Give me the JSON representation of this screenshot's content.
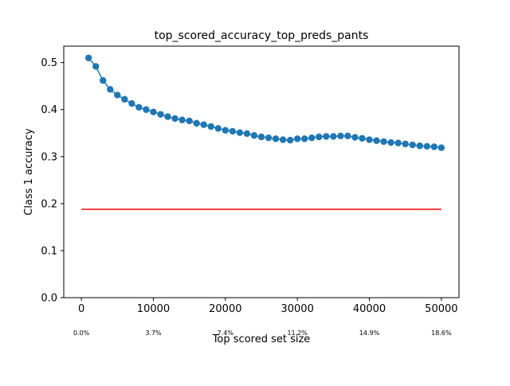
{
  "chart_data": {
    "type": "line",
    "title": "top_scored_accuracy_top_preds_pants",
    "xlabel": "Top scored set size",
    "ylabel": "Class 1 accuracy",
    "xlim": [
      -2450,
      52450
    ],
    "ylim": [
      0.0,
      0.535
    ],
    "xticks": [
      0,
      10000,
      20000,
      30000,
      40000,
      50000
    ],
    "xtick_labels": [
      "0",
      "10000",
      "20000",
      "30000",
      "40000",
      "50000"
    ],
    "yticks": [
      0.0,
      0.1,
      0.2,
      0.3,
      0.4,
      0.5
    ],
    "ytick_labels": [
      "0.0",
      "0.1",
      "0.2",
      "0.3",
      "0.4",
      "0.5"
    ],
    "secondary_labels": [
      {
        "x": 0,
        "text": "0.0%"
      },
      {
        "x": 10000,
        "text": "3.7%"
      },
      {
        "x": 20000,
        "text": "7.4%"
      },
      {
        "x": 30000,
        "text": "11.2%"
      },
      {
        "x": 40000,
        "text": "14.9%"
      },
      {
        "x": 50000,
        "text": "18.6%"
      }
    ],
    "grid": false,
    "series": [
      {
        "color": "#1f77b4",
        "marker": "circle",
        "x": [
          1000,
          2000,
          3000,
          4000,
          5000,
          6000,
          7000,
          8000,
          9000,
          10000,
          11000,
          12000,
          13000,
          14000,
          15000,
          16000,
          17000,
          18000,
          19000,
          20000,
          21000,
          22000,
          23000,
          24000,
          25000,
          26000,
          27000,
          28000,
          29000,
          30000,
          31000,
          32000,
          33000,
          34000,
          35000,
          36000,
          37000,
          38000,
          39000,
          40000,
          41000,
          42000,
          43000,
          44000,
          45000,
          46000,
          47000,
          48000,
          49000,
          50000
        ],
        "values": [
          0.51,
          0.492,
          0.462,
          0.443,
          0.431,
          0.422,
          0.413,
          0.405,
          0.4,
          0.395,
          0.39,
          0.385,
          0.381,
          0.378,
          0.376,
          0.371,
          0.368,
          0.364,
          0.36,
          0.356,
          0.354,
          0.351,
          0.349,
          0.345,
          0.342,
          0.34,
          0.338,
          0.336,
          0.335,
          0.338,
          0.338,
          0.34,
          0.342,
          0.343,
          0.343,
          0.344,
          0.344,
          0.341,
          0.339,
          0.336,
          0.334,
          0.332,
          0.33,
          0.329,
          0.327,
          0.325,
          0.323,
          0.322,
          0.321,
          0.319
        ]
      },
      {
        "color": "#ff0000",
        "marker": "none",
        "x": [
          0,
          50000
        ],
        "values": [
          0.188,
          0.188
        ]
      }
    ]
  }
}
